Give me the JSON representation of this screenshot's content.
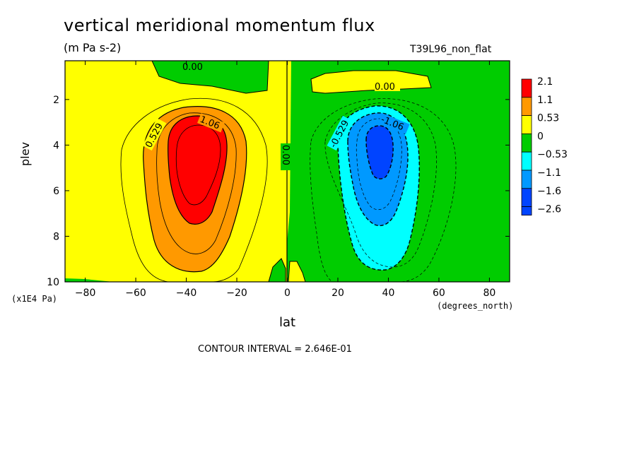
{
  "chart_data": {
    "type": "heatmap",
    "subtype": "filled-contour",
    "title": "vertical meridional momentum flux",
    "units": "(m Pa s-2)",
    "run_label": "T39L96_non_flat",
    "xlabel": "lat",
    "x_units": "(degrees_north)",
    "ylabel": "plev",
    "y_units": "(x1E4 Pa)",
    "xlim": [
      -88,
      88
    ],
    "ylim": [
      10,
      0.3
    ],
    "x_ticks": [
      -80,
      -60,
      -40,
      -20,
      0,
      20,
      40,
      60,
      80
    ],
    "x_tick_labels": [
      "−80",
      "−60",
      "−40",
      "−20",
      "0",
      "20",
      "40",
      "60",
      "80"
    ],
    "y_ticks": [
      2,
      4,
      6,
      8,
      10
    ],
    "y_tick_labels": [
      "2",
      "4",
      "6",
      "8",
      "10"
    ],
    "contour_interval_text": "CONTOUR INTERVAL = 2.646E-01",
    "contour_interval": 0.2646,
    "contour_labels": [
      "0.00",
      "0.00",
      "0.529",
      "1.06",
      "0.00",
      "-0.529",
      "-1.06"
    ],
    "colorbar": {
      "labels": [
        "2.1",
        "1.1",
        "0.53",
        "0",
        "−0.53",
        "−1.1",
        "−1.6",
        "−2.6"
      ],
      "colors": [
        "#ff0000",
        "#ff9900",
        "#ffff00",
        "#00cc00",
        "#00ffff",
        "#0099ff",
        "#0044ff",
        "#0044ff"
      ]
    },
    "features": [
      {
        "name": "positive maximum (SH)",
        "lat": -37,
        "plev": 4.2,
        "value": 2.1
      },
      {
        "name": "negative minimum (NH)",
        "lat": 37,
        "plev": 4.0,
        "value": -2.6
      }
    ]
  }
}
